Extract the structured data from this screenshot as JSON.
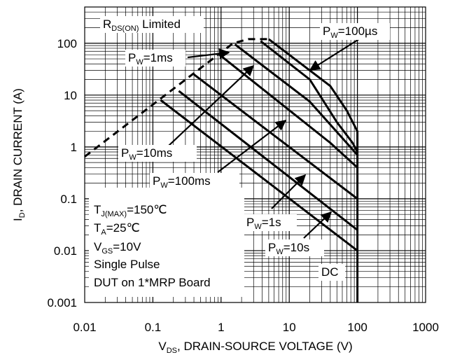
{
  "chart_data": {
    "type": "line",
    "title": "",
    "xlabel": {
      "main": "V",
      "sub": "DS",
      "rest": ", DRAIN-SOURCE VOLTAGE (V)"
    },
    "ylabel": {
      "main": "I",
      "sub": "D",
      "rest": ", DRAIN CURRENT (A)"
    },
    "x_scale": "log",
    "y_scale": "log",
    "xlim": [
      0.01,
      1000
    ],
    "ylim": [
      0.001,
      500
    ],
    "x_ticks": [
      "0.01",
      "0.1",
      "1",
      "10",
      "100",
      "1000"
    ],
    "y_ticks": [
      "0.001",
      "0.01",
      "0.1",
      "1",
      "10",
      "100"
    ],
    "grid": true,
    "series": [
      {
        "name": "RDS(ON) Limited",
        "style": "dashed",
        "x": [
          0.01,
          1.5,
          2.5,
          5
        ],
        "y": [
          0.65,
          100,
          120,
          120
        ]
      },
      {
        "name": "PW=100µs",
        "style": "solid",
        "x": [
          5,
          40,
          70,
          100,
          100
        ],
        "y": [
          120,
          15,
          5,
          2,
          0.001
        ]
      },
      {
        "name": "PW=1ms",
        "style": "solid",
        "x": [
          3.8,
          20,
          50,
          85,
          100
        ],
        "y": [
          110,
          20,
          3,
          1.2,
          0.8
        ]
      },
      {
        "name": "PW=10ms",
        "style": "solid",
        "x": [
          1.6,
          20,
          100
        ],
        "y": [
          95,
          7.5,
          0.7
        ]
      },
      {
        "name": "PW=100ms",
        "style": "solid",
        "x": [
          0.95,
          40,
          100
        ],
        "y": [
          60,
          1.2,
          0.4
        ]
      },
      {
        "name": "PW=1s",
        "style": "solid",
        "x": [
          0.4,
          100
        ],
        "y": [
          25,
          0.1
        ]
      },
      {
        "name": "PW=10s",
        "style": "solid",
        "x": [
          0.24,
          100
        ],
        "y": [
          12,
          0.025
        ]
      },
      {
        "name": "DC",
        "style": "solid",
        "x": [
          0.13,
          100
        ],
        "y": [
          8,
          0.01
        ]
      }
    ]
  },
  "annotations": {
    "rds_limited": {
      "main": "R",
      "sub": "DS(ON)",
      "rest": " Limited"
    },
    "pw_100us": {
      "main": "P",
      "sub": "W",
      "rest": "=100µs"
    },
    "pw_1ms": {
      "main": "P",
      "sub": "W",
      "rest": "=1ms"
    },
    "pw_10ms": {
      "main": "P",
      "sub": "W",
      "rest": "=10ms"
    },
    "pw_100ms": {
      "main": "P",
      "sub": "W",
      "rest": "=100ms"
    },
    "pw_1s": {
      "main": "P",
      "sub": "W",
      "rest": "=1s"
    },
    "pw_10s": {
      "main": "P",
      "sub": "W",
      "rest": "=10s"
    },
    "dc": "DC"
  },
  "conditions": {
    "tj": {
      "main": "T",
      "sub": "J(MAX)",
      "rest": "=150℃"
    },
    "ta": {
      "main": "T",
      "sub": "A",
      "rest": "=25℃"
    },
    "vgs": {
      "main": "V",
      "sub": "GS",
      "rest": "=10V"
    },
    "pulse": "Single Pulse",
    "board": "DUT on 1*MRP Board"
  }
}
